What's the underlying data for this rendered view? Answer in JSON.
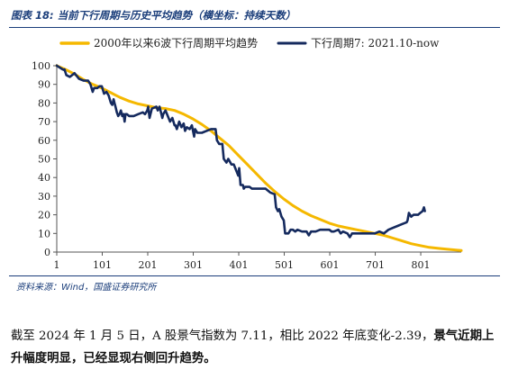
{
  "figure": {
    "title": "图表 18:  当前下行周期与历史平均趋势（横坐标：持续天数）",
    "source": "资料来源：Wind，国盛证券研究所"
  },
  "paragraph": {
    "prefix": "截至 2024 年 1 月 5 日，A 股景气指数为 7.11，相比 2022 年底变化-2.39，",
    "highlight": "景气近期上升幅度明显，已经显现右侧回升趋势。"
  },
  "colors": {
    "series_avg": "#f5b800",
    "series_current": "#152a5e",
    "axis": "#555555",
    "accent": "#1a3d7a"
  },
  "chart_data": {
    "type": "line",
    "title": "",
    "xlabel": "",
    "ylabel": "",
    "xlim": [
      1,
      890
    ],
    "ylim": [
      0,
      100
    ],
    "x_ticks": [
      1,
      101,
      201,
      301,
      401,
      501,
      601,
      701,
      801
    ],
    "y_ticks": [
      0,
      10,
      20,
      30,
      40,
      50,
      60,
      70,
      80,
      90,
      100
    ],
    "grid": false,
    "legend": "top",
    "series": [
      {
        "name": "2000年以来6波下行周期平均趋势",
        "color": "#f5b800",
        "points": [
          [
            1,
            100
          ],
          [
            20,
            98
          ],
          [
            40,
            95.5
          ],
          [
            60,
            92.5
          ],
          [
            80,
            90
          ],
          [
            100,
            88
          ],
          [
            120,
            85.5
          ],
          [
            140,
            83
          ],
          [
            160,
            81
          ],
          [
            180,
            79.5
          ],
          [
            200,
            78.5
          ],
          [
            220,
            77.5
          ],
          [
            240,
            77
          ],
          [
            260,
            76
          ],
          [
            280,
            74
          ],
          [
            300,
            71.5
          ],
          [
            320,
            68.5
          ],
          [
            340,
            65
          ],
          [
            360,
            61
          ],
          [
            380,
            57
          ],
          [
            400,
            52
          ],
          [
            420,
            47
          ],
          [
            440,
            42
          ],
          [
            460,
            37
          ],
          [
            480,
            32.5
          ],
          [
            500,
            28.5
          ],
          [
            520,
            25
          ],
          [
            540,
            22
          ],
          [
            560,
            19.5
          ],
          [
            580,
            17.5
          ],
          [
            600,
            15.5
          ],
          [
            620,
            14
          ],
          [
            640,
            13
          ],
          [
            660,
            12
          ],
          [
            680,
            11
          ],
          [
            700,
            10
          ],
          [
            720,
            9
          ],
          [
            740,
            7.5
          ],
          [
            760,
            6
          ],
          [
            780,
            4.5
          ],
          [
            800,
            3.5
          ],
          [
            820,
            2.5
          ],
          [
            840,
            2
          ],
          [
            860,
            1.5
          ],
          [
            890,
            0.8
          ]
        ]
      },
      {
        "name": "下行周期7: 2021.10-now",
        "color": "#152a5e",
        "points": [
          [
            1,
            100
          ],
          [
            8,
            99
          ],
          [
            14,
            98
          ],
          [
            16,
            97.8
          ],
          [
            18,
            98
          ],
          [
            22,
            95
          ],
          [
            30,
            94
          ],
          [
            40,
            96
          ],
          [
            50,
            93
          ],
          [
            60,
            92
          ],
          [
            70,
            92
          ],
          [
            75,
            90
          ],
          [
            80,
            86
          ],
          [
            83,
            88
          ],
          [
            90,
            88
          ],
          [
            95,
            89
          ],
          [
            100,
            89
          ],
          [
            105,
            85
          ],
          [
            110,
            86
          ],
          [
            115,
            84
          ],
          [
            120,
            80
          ],
          [
            123,
            79
          ],
          [
            126,
            82
          ],
          [
            128,
            80
          ],
          [
            130,
            78
          ],
          [
            133,
            75
          ],
          [
            136,
            73
          ],
          [
            139,
            74
          ],
          [
            142,
            76
          ],
          [
            145,
            73
          ],
          [
            148,
            74
          ],
          [
            150,
            70
          ],
          [
            152,
            74
          ],
          [
            155,
            74
          ],
          [
            160,
            73
          ],
          [
            170,
            73
          ],
          [
            180,
            74
          ],
          [
            190,
            75
          ],
          [
            195,
            74
          ],
          [
            200,
            76
          ],
          [
            202,
            78
          ],
          [
            205,
            72
          ],
          [
            210,
            77
          ],
          [
            215,
            77.5
          ],
          [
            220,
            78
          ],
          [
            223,
            76
          ],
          [
            227,
            78
          ],
          [
            233,
            72
          ],
          [
            235,
            74
          ],
          [
            240,
            76
          ],
          [
            250,
            70
          ],
          [
            255,
            72
          ],
          [
            260,
            68
          ],
          [
            262,
            68
          ],
          [
            265,
            66
          ],
          [
            270,
            70
          ],
          [
            275,
            67
          ],
          [
            280,
            69
          ],
          [
            283,
            65
          ],
          [
            287,
            67
          ],
          [
            293,
            66
          ],
          [
            298,
            68
          ],
          [
            303,
            62
          ],
          [
            305,
            66
          ],
          [
            310,
            64
          ],
          [
            320,
            64
          ],
          [
            330,
            65
          ],
          [
            340,
            66
          ],
          [
            350,
            66
          ],
          [
            353,
            60
          ],
          [
            358,
            58
          ],
          [
            365,
            58
          ],
          [
            368,
            50
          ],
          [
            374,
            48
          ],
          [
            378,
            50
          ],
          [
            385,
            47
          ],
          [
            390,
            47
          ],
          [
            395,
            44
          ],
          [
            400,
            41
          ],
          [
            402,
            45
          ],
          [
            405,
            36
          ],
          [
            410,
            36
          ],
          [
            412,
            34
          ],
          [
            415,
            35
          ],
          [
            420,
            35
          ],
          [
            425,
            35
          ],
          [
            430,
            34
          ],
          [
            440,
            34
          ],
          [
            450,
            34
          ],
          [
            460,
            34
          ],
          [
            470,
            32
          ],
          [
            480,
            31
          ],
          [
            483,
            24
          ],
          [
            487,
            22
          ],
          [
            490,
            23
          ],
          [
            495,
            19
          ],
          [
            500,
            17
          ],
          [
            503,
            10
          ],
          [
            507,
            10
          ],
          [
            510,
            10
          ],
          [
            515,
            12
          ],
          [
            520,
            12
          ],
          [
            525,
            11
          ],
          [
            530,
            12
          ],
          [
            540,
            11
          ],
          [
            550,
            11
          ],
          [
            555,
            9
          ],
          [
            560,
            11
          ],
          [
            570,
            11
          ],
          [
            580,
            12
          ],
          [
            590,
            12
          ],
          [
            600,
            12
          ],
          [
            605,
            11
          ],
          [
            610,
            11
          ],
          [
            620,
            12
          ],
          [
            625,
            10
          ],
          [
            630,
            11
          ],
          [
            640,
            10
          ],
          [
            645,
            8
          ],
          [
            650,
            10
          ],
          [
            660,
            10
          ],
          [
            670,
            10
          ],
          [
            680,
            10
          ],
          [
            690,
            10
          ],
          [
            700,
            10
          ],
          [
            710,
            11
          ],
          [
            720,
            10
          ],
          [
            730,
            12
          ],
          [
            740,
            13
          ],
          [
            750,
            14
          ],
          [
            760,
            15
          ],
          [
            770,
            16
          ],
          [
            772,
            17
          ],
          [
            775,
            21
          ],
          [
            780,
            19
          ],
          [
            785,
            20
          ],
          [
            790,
            20
          ],
          [
            795,
            20
          ],
          [
            800,
            21
          ],
          [
            805,
            22
          ],
          [
            808,
            24
          ],
          [
            810,
            22
          ]
        ]
      }
    ]
  }
}
